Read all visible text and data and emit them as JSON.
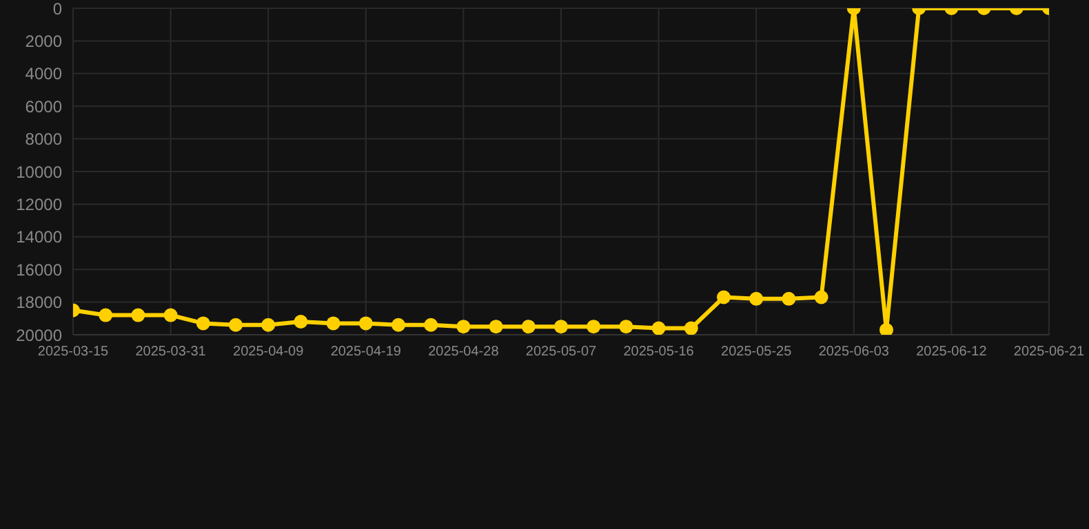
{
  "chart_data": {
    "type": "line",
    "categories": [
      "2025-03-15",
      null,
      null,
      "2025-03-31",
      null,
      null,
      "2025-04-09",
      null,
      null,
      "2025-04-19",
      null,
      null,
      "2025-04-28",
      null,
      null,
      "2025-05-07",
      null,
      null,
      "2025-05-16",
      null,
      null,
      "2025-05-25",
      null,
      null,
      "2025-06-03",
      null,
      null,
      "2025-06-12",
      null,
      null,
      "2025-06-21"
    ],
    "series": [
      {
        "color": "#ffd000",
        "values": [
          18500,
          18800,
          18800,
          18800,
          19300,
          19400,
          19400,
          19200,
          19300,
          19300,
          19400,
          19400,
          19500,
          19500,
          19500,
          19500,
          19500,
          19500,
          19600,
          19600,
          17700,
          17800,
          17800,
          17700,
          0,
          19700,
          0,
          0,
          0,
          0,
          0
        ]
      }
    ],
    "ylim": [
      20000,
      0
    ],
    "yticks": [
      0,
      2000,
      4000,
      6000,
      8000,
      10000,
      12000,
      14000,
      16000,
      18000,
      20000
    ],
    "grid": true,
    "marker": "circle",
    "line_style": "solid"
  }
}
